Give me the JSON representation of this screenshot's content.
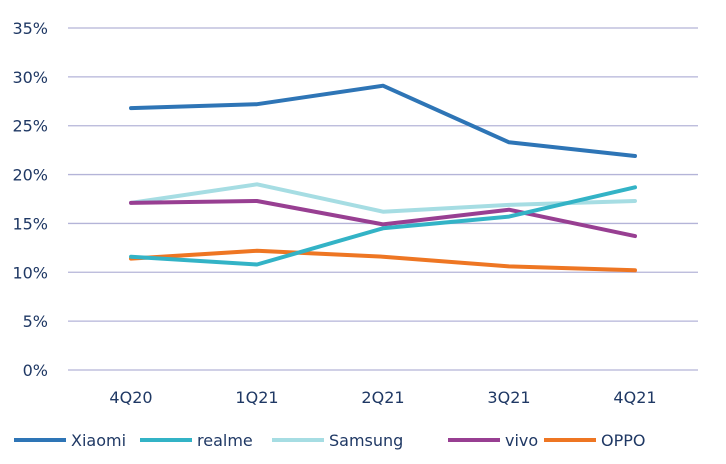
{
  "chart_data": {
    "type": "line",
    "categories": [
      "4Q20",
      "1Q21",
      "2Q21",
      "3Q21",
      "4Q21"
    ],
    "ylim": [
      0,
      35
    ],
    "yticks": [
      0,
      5,
      10,
      15,
      20,
      25,
      30,
      35
    ],
    "ytick_labels": [
      "0%",
      "5%",
      "10%",
      "15%",
      "20%",
      "25%",
      "30%",
      "35%"
    ],
    "grid": true,
    "legend_position": "bottom",
    "series": [
      {
        "name": "Xiaomi",
        "color": "#2e75b6",
        "values": [
          26.8,
          27.2,
          29.1,
          23.3,
          21.9
        ]
      },
      {
        "name": "realme",
        "color": "#33b3c6",
        "values": [
          11.6,
          10.8,
          14.5,
          15.7,
          18.7
        ]
      },
      {
        "name": "Samsung",
        "color": "#a6dde3",
        "values": [
          17.1,
          19.0,
          16.2,
          16.9,
          17.3
        ]
      },
      {
        "name": "vivo",
        "color": "#983f92",
        "values": [
          17.1,
          17.3,
          14.9,
          16.4,
          13.7
        ]
      },
      {
        "name": "OPPO",
        "color": "#ee7623",
        "values": [
          11.4,
          12.2,
          11.6,
          10.6,
          10.2
        ]
      }
    ]
  }
}
